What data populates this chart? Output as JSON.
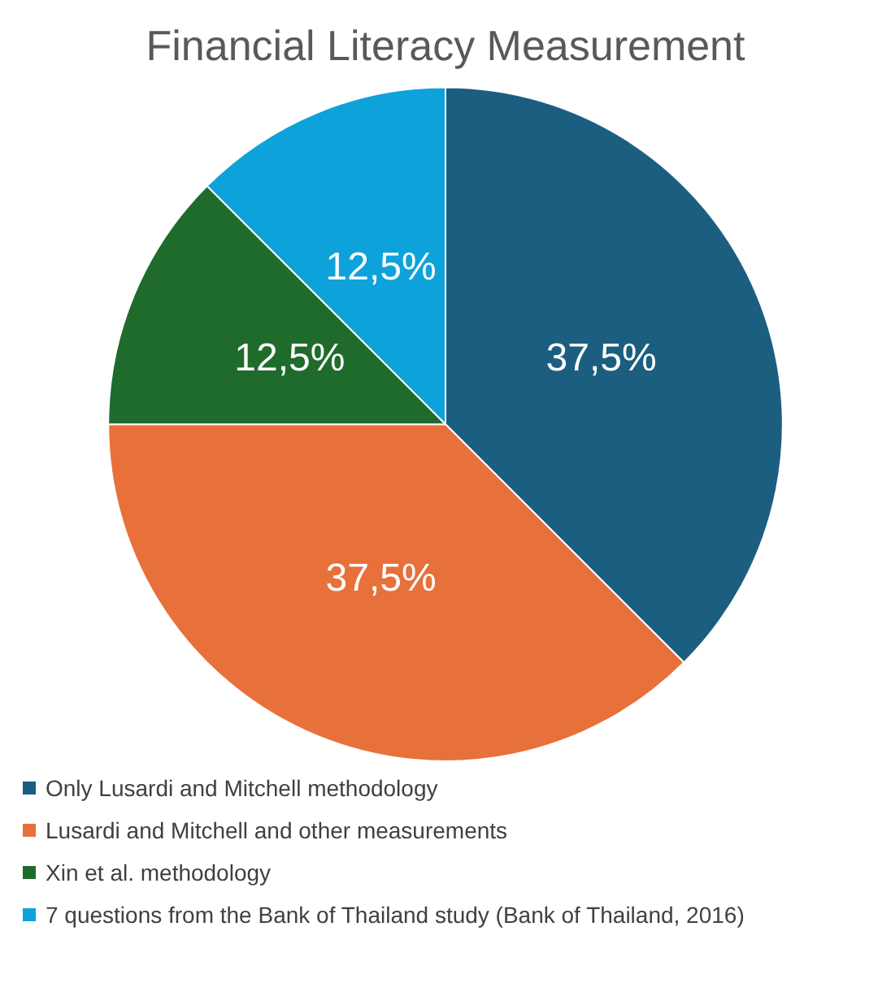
{
  "chart_data": {
    "type": "pie",
    "title": "Financial Literacy Measurement",
    "categories": [
      "Only Lusardi and Mitchell methodology",
      "Lusardi and Mitchell and other measurements",
      "Xin et al. methodology",
      "7 questions from the Bank of Thailand study (Bank of Thailand, 2016)"
    ],
    "values": [
      37.5,
      37.5,
      12.5,
      12.5
    ],
    "colors": [
      "#1b5e80",
      "#e8703a",
      "#1f6b2c",
      "#0ea2da"
    ],
    "value_labels": [
      "37,5%",
      "37,5%",
      "12,5%",
      "12,5%"
    ],
    "legend": "bottom"
  }
}
